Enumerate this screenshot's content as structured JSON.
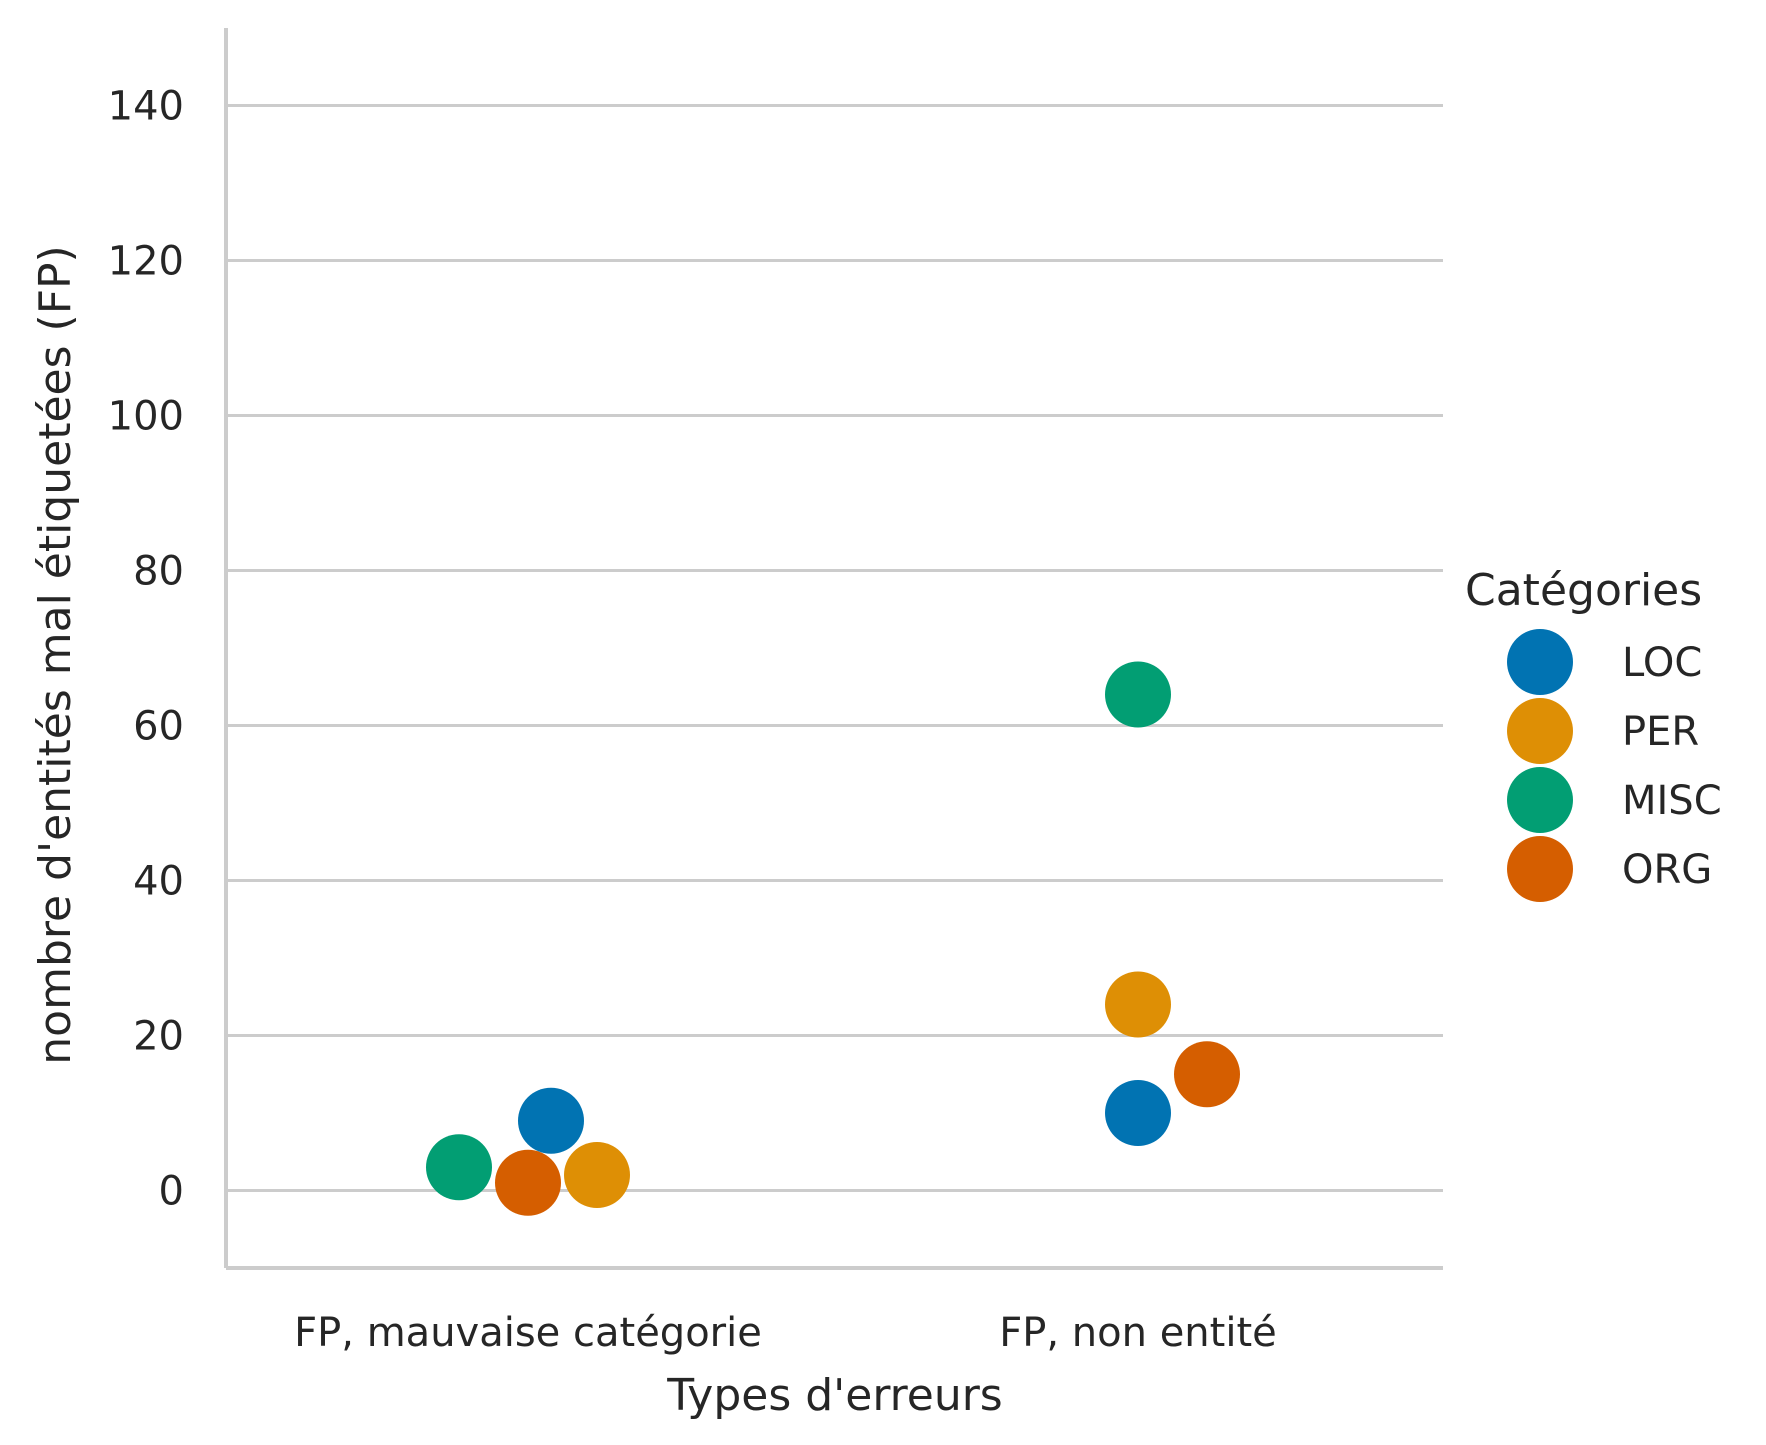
{
  "chart_data": {
    "type": "scatter",
    "xlabel": "Types d'erreurs",
    "ylabel": "nombre d'entités mal étiquetées (FP)",
    "categories": [
      "FP, mauvaise catégorie",
      "FP, non entité"
    ],
    "ylim": [
      -10,
      150
    ],
    "yticks": [
      0,
      20,
      40,
      60,
      80,
      100,
      120,
      140
    ],
    "grid": "horizontal",
    "legend": {
      "title": "Catégories",
      "placement": "right"
    },
    "series": [
      {
        "name": "LOC",
        "color": "#0173b2",
        "values": [
          9,
          10
        ]
      },
      {
        "name": "PER",
        "color": "#de8f05",
        "values": [
          2,
          24
        ]
      },
      {
        "name": "MISC",
        "color": "#029e73",
        "values": [
          3,
          64
        ]
      },
      {
        "name": "ORG",
        "color": "#d55e00",
        "values": [
          1,
          15
        ]
      }
    ]
  }
}
